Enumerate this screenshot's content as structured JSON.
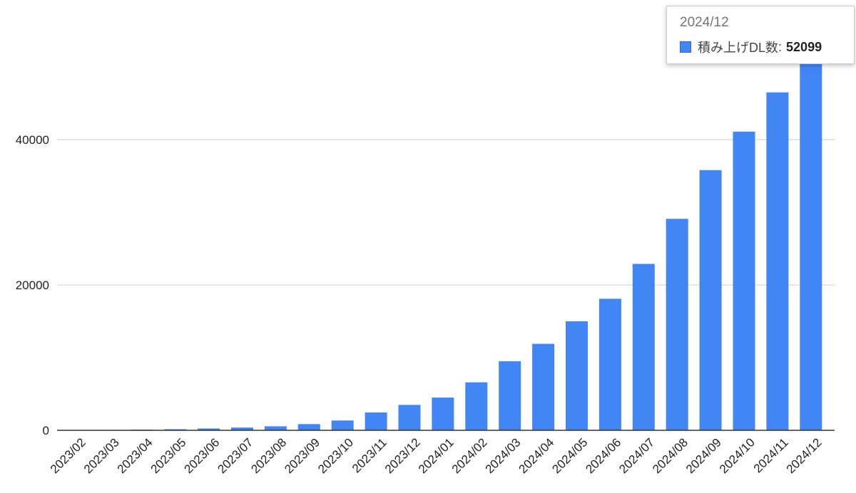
{
  "chart_data": {
    "type": "bar",
    "title": "",
    "xlabel": "",
    "ylabel": "",
    "ylim": [
      0,
      60000
    ],
    "yticks": [
      0,
      20000,
      40000,
      60000
    ],
    "grid": true,
    "bar_color": "#4285f4",
    "categories": [
      "2023/02",
      "2023/03",
      "2023/04",
      "2023/05",
      "2023/06",
      "2023/07",
      "2023/08",
      "2023/09",
      "2023/10",
      "2023/11",
      "2023/12",
      "2024/01",
      "2024/02",
      "2024/03",
      "2024/04",
      "2024/05",
      "2024/06",
      "2024/07",
      "2024/08",
      "2024/09",
      "2024/10",
      "2024/11",
      "2024/12"
    ],
    "series": [
      {
        "name": "積み上げDL数",
        "values": [
          20,
          60,
          100,
          150,
          250,
          380,
          550,
          850,
          1350,
          2450,
          3500,
          4500,
          6600,
          9500,
          11900,
          15000,
          18100,
          22900,
          29100,
          35800,
          41100,
          46500,
          52099
        ]
      }
    ]
  },
  "tooltip": {
    "title": "2024/12",
    "series_name": "積み上げDL数",
    "separator": ":",
    "value": "52099",
    "swatch_color": "#4285f4"
  }
}
